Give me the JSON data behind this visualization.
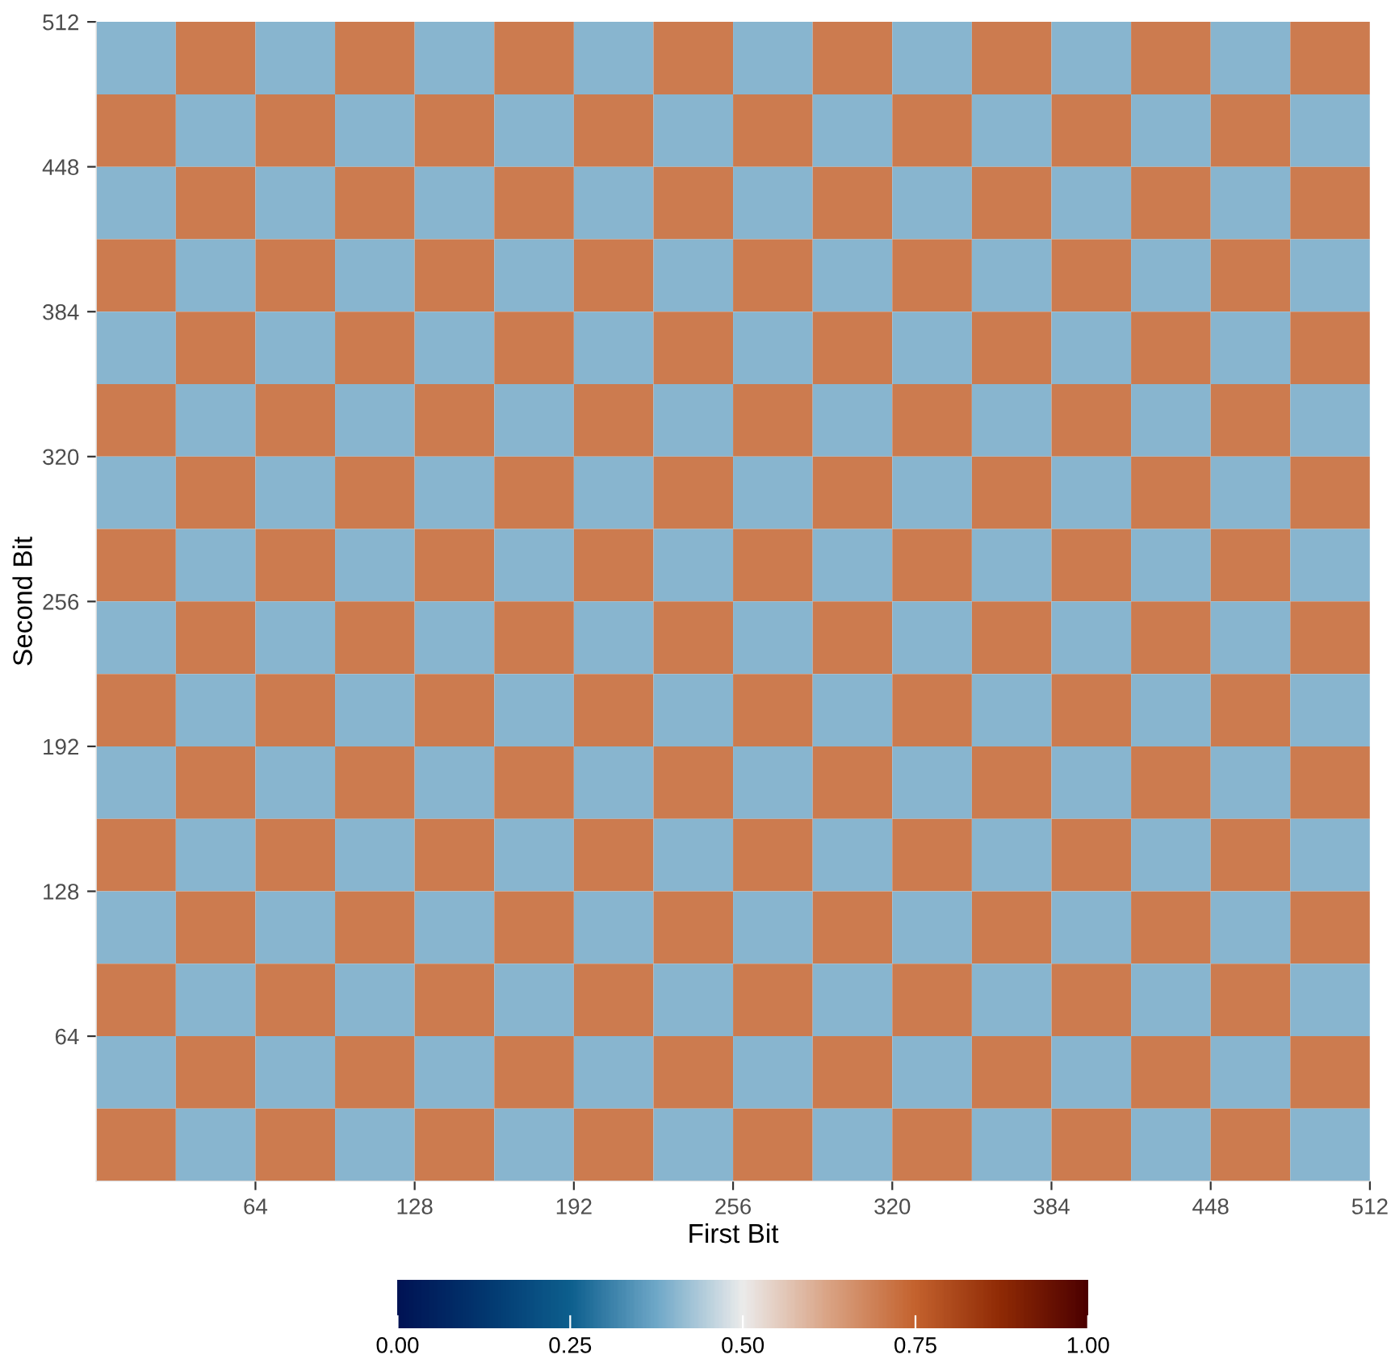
{
  "chart_data": {
    "type": "heatmap",
    "xlabel": "First Bit",
    "ylabel": "Second Bit",
    "x": [
      16,
      48,
      80,
      112,
      144,
      176,
      208,
      240,
      272,
      304,
      336,
      368,
      400,
      432,
      464,
      496
    ],
    "y": [
      496,
      464,
      432,
      400,
      368,
      336,
      304,
      272,
      240,
      208,
      176,
      144,
      112,
      80,
      48,
      16
    ],
    "cells": [
      [
        0.4,
        0.7,
        0.4,
        0.7,
        0.4,
        0.7,
        0.4,
        0.7,
        0.4,
        0.7,
        0.4,
        0.7,
        0.4,
        0.7,
        0.4,
        0.7
      ],
      [
        0.7,
        0.4,
        0.7,
        0.4,
        0.7,
        0.4,
        0.7,
        0.4,
        0.7,
        0.4,
        0.7,
        0.4,
        0.7,
        0.4,
        0.7,
        0.4
      ],
      [
        0.4,
        0.7,
        0.4,
        0.7,
        0.4,
        0.7,
        0.4,
        0.7,
        0.4,
        0.7,
        0.4,
        0.7,
        0.4,
        0.7,
        0.4,
        0.7
      ],
      [
        0.7,
        0.4,
        0.7,
        0.4,
        0.7,
        0.4,
        0.7,
        0.4,
        0.7,
        0.4,
        0.7,
        0.4,
        0.7,
        0.4,
        0.7,
        0.4
      ],
      [
        0.4,
        0.7,
        0.4,
        0.7,
        0.4,
        0.7,
        0.4,
        0.7,
        0.4,
        0.7,
        0.4,
        0.7,
        0.4,
        0.7,
        0.4,
        0.7
      ],
      [
        0.7,
        0.4,
        0.7,
        0.4,
        0.7,
        0.4,
        0.7,
        0.4,
        0.7,
        0.4,
        0.7,
        0.4,
        0.7,
        0.4,
        0.7,
        0.4
      ],
      [
        0.4,
        0.7,
        0.4,
        0.7,
        0.4,
        0.7,
        0.4,
        0.7,
        0.4,
        0.7,
        0.4,
        0.7,
        0.4,
        0.7,
        0.4,
        0.7
      ],
      [
        0.7,
        0.4,
        0.7,
        0.4,
        0.7,
        0.4,
        0.7,
        0.4,
        0.7,
        0.4,
        0.7,
        0.4,
        0.7,
        0.4,
        0.7,
        0.4
      ],
      [
        0.4,
        0.7,
        0.4,
        0.7,
        0.4,
        0.7,
        0.4,
        0.7,
        0.4,
        0.7,
        0.4,
        0.7,
        0.4,
        0.7,
        0.4,
        0.7
      ],
      [
        0.7,
        0.4,
        0.7,
        0.4,
        0.7,
        0.4,
        0.7,
        0.4,
        0.7,
        0.4,
        0.7,
        0.4,
        0.7,
        0.4,
        0.7,
        0.4
      ],
      [
        0.4,
        0.7,
        0.4,
        0.7,
        0.4,
        0.7,
        0.4,
        0.7,
        0.4,
        0.7,
        0.4,
        0.7,
        0.4,
        0.7,
        0.4,
        0.7
      ],
      [
        0.7,
        0.4,
        0.7,
        0.4,
        0.7,
        0.4,
        0.7,
        0.4,
        0.7,
        0.4,
        0.7,
        0.4,
        0.7,
        0.4,
        0.7,
        0.4
      ],
      [
        0.4,
        0.7,
        0.4,
        0.7,
        0.4,
        0.7,
        0.4,
        0.7,
        0.4,
        0.7,
        0.4,
        0.7,
        0.4,
        0.7,
        0.4,
        0.7
      ],
      [
        0.7,
        0.4,
        0.7,
        0.4,
        0.7,
        0.4,
        0.7,
        0.4,
        0.7,
        0.4,
        0.7,
        0.4,
        0.7,
        0.4,
        0.7,
        0.4
      ],
      [
        0.4,
        0.7,
        0.4,
        0.7,
        0.4,
        0.7,
        0.4,
        0.7,
        0.4,
        0.7,
        0.4,
        0.7,
        0.4,
        0.7,
        0.4,
        0.7
      ],
      [
        0.7,
        0.4,
        0.7,
        0.4,
        0.7,
        0.4,
        0.7,
        0.4,
        0.7,
        0.4,
        0.7,
        0.4,
        0.7,
        0.4,
        0.7,
        0.4
      ]
    ],
    "colors": [
      "#001354",
      "#02376f",
      "#0d5f8e",
      "#6fa8c8",
      "#ebebeb",
      "#d9a283",
      "#c4622e",
      "#8f2a05",
      "#4c0000"
    ],
    "clim": [
      0,
      1
    ],
    "cticks": [
      {
        "value": 0,
        "label": "0.00"
      },
      {
        "value": 0.25,
        "label": "0.25"
      },
      {
        "value": 0.5,
        "label": "0.50"
      },
      {
        "value": 0.75,
        "label": "0.75"
      },
      {
        "value": 1,
        "label": "1.00"
      }
    ],
    "xlim": [
      0,
      512
    ],
    "ylim": [
      0,
      512
    ],
    "xticks": [
      64,
      128,
      192,
      256,
      320,
      384,
      448,
      512
    ],
    "yticks": [
      64,
      128,
      192,
      256,
      320,
      384,
      448,
      512
    ],
    "grid": false
  }
}
